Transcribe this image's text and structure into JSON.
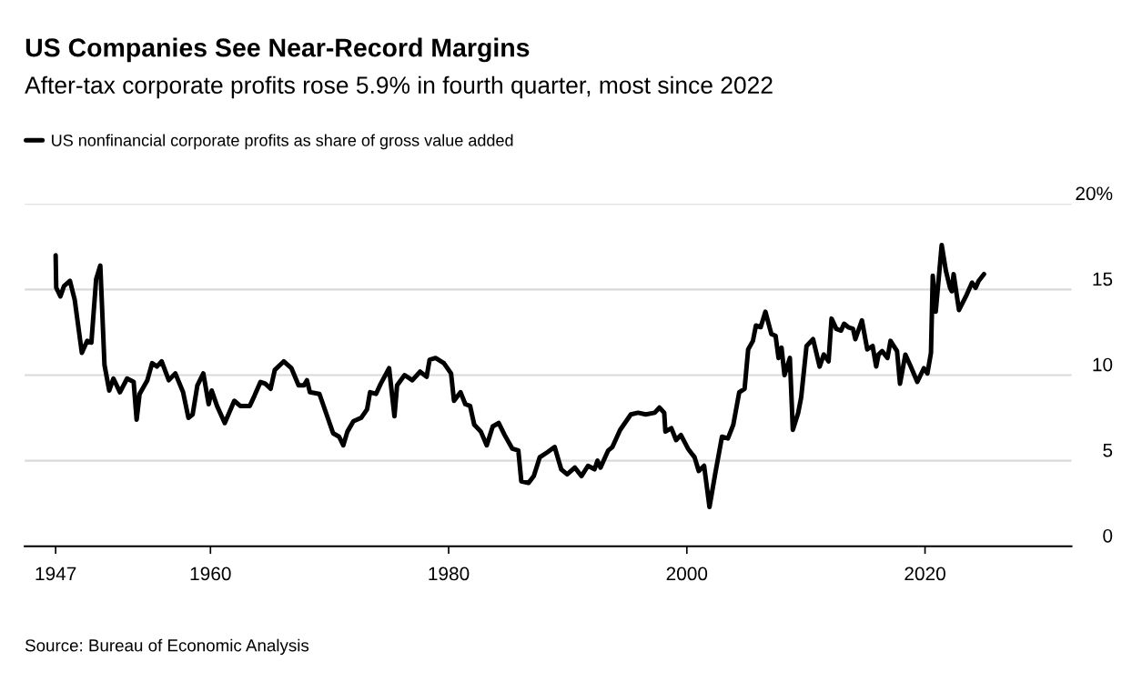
{
  "chart_data": {
    "type": "line",
    "title": "US Companies See Near-Record Margins",
    "subtitle": "After-tax corporate profits rose 5.9% in fourth quarter, most since 2022",
    "annotations": [
      "Source: Bureau of Economic Analysis"
    ],
    "legend": "top left",
    "grid": "y",
    "line_style": "solid",
    "xlim": [
      1944.4,
      2032.3
    ],
    "xticks": [
      1947,
      1960,
      1980,
      2000,
      2020
    ],
    "ylim": [
      0,
      20
    ],
    "yticks": [
      0,
      5,
      10,
      15,
      {
        "value": 20,
        "label": "20%"
      }
    ],
    "series": [
      {
        "name": "US nonfinancial corporate profits as share of gross value added",
        "color": "#000000",
        "x": [
          1947.0,
          1947.05,
          1947.4,
          1947.7,
          1948.2,
          1948.6,
          1949.2,
          1949.65,
          1950.0,
          1950.4,
          1950.75,
          1951.1,
          1951.5,
          1951.85,
          1952.4,
          1953.0,
          1953.55,
          1953.8,
          1954.05,
          1954.7,
          1955.1,
          1955.5,
          1955.9,
          1956.5,
          1957.05,
          1957.7,
          1958.15,
          1958.5,
          1958.9,
          1959.4,
          1959.85,
          1960.1,
          1960.55,
          1961.2,
          1962.0,
          1962.5,
          1963.3,
          1963.7,
          1964.2,
          1964.6,
          1965.05,
          1965.4,
          1966.15,
          1966.8,
          1967.4,
          1967.85,
          1968.1,
          1968.35,
          1969.15,
          1970.3,
          1970.8,
          1971.15,
          1971.5,
          1972.0,
          1972.65,
          1973.15,
          1973.4,
          1973.9,
          1974.3,
          1975.0,
          1975.45,
          1975.67,
          1976.3,
          1976.95,
          1977.6,
          1978.15,
          1978.4,
          1978.9,
          1979.6,
          1980.2,
          1980.45,
          1981.0,
          1981.4,
          1981.8,
          1982.15,
          1982.7,
          1983.2,
          1983.7,
          1984.2,
          1984.7,
          1985.35,
          1985.85,
          1986.1,
          1986.7,
          1987.15,
          1987.65,
          1988.3,
          1988.9,
          1989.45,
          1989.95,
          1990.6,
          1991.15,
          1991.7,
          1992.25,
          1992.5,
          1992.75,
          1993.4,
          1993.75,
          1994.4,
          1995.3,
          1995.9,
          1996.55,
          1997.3,
          1997.7,
          1998.1,
          1998.2,
          1998.7,
          1999.1,
          1999.5,
          2000.1,
          2000.65,
          2001.0,
          2001.45,
          2001.9,
          2002.4,
          2002.95,
          2003.45,
          2003.9,
          2004.4,
          2004.85,
          2005.15,
          2005.55,
          2005.8,
          2006.2,
          2006.6,
          2007.1,
          2007.45,
          2007.7,
          2007.95,
          2008.2,
          2008.65,
          2008.9,
          2009.35,
          2009.6,
          2010.05,
          2010.6,
          2011.15,
          2011.5,
          2011.9,
          2012.15,
          2012.55,
          2012.95,
          2013.2,
          2013.55,
          2013.95,
          2014.15,
          2014.7,
          2015.15,
          2015.6,
          2015.9,
          2016.1,
          2016.4,
          2016.85,
          2017.1,
          2017.65,
          2017.9,
          2018.35,
          2018.8,
          2019.35,
          2019.9,
          2020.2,
          2020.5,
          2020.65,
          2020.9,
          2021.4,
          2021.75,
          2022.1,
          2022.25,
          2022.4,
          2022.85,
          2023.5,
          2023.95,
          2024.25,
          2024.5,
          2024.95
        ],
        "values": [
          17.0,
          15.1,
          14.6,
          15.2,
          15.5,
          14.4,
          11.3,
          12.0,
          11.9,
          15.6,
          16.4,
          10.6,
          9.1,
          9.8,
          9.0,
          9.8,
          9.6,
          7.4,
          8.9,
          9.7,
          10.7,
          10.5,
          10.8,
          9.7,
          10.1,
          9.0,
          7.5,
          7.7,
          9.4,
          10.1,
          8.3,
          9.1,
          8.2,
          7.2,
          8.5,
          8.2,
          8.2,
          8.8,
          9.6,
          9.5,
          9.2,
          10.3,
          10.8,
          10.4,
          9.4,
          9.4,
          9.7,
          9.0,
          8.9,
          6.6,
          6.4,
          5.9,
          6.7,
          7.3,
          7.5,
          8.0,
          9.0,
          8.9,
          9.5,
          10.4,
          7.6,
          9.4,
          10.0,
          9.7,
          10.2,
          9.9,
          10.9,
          11.0,
          10.7,
          10.1,
          8.5,
          9.0,
          8.3,
          8.2,
          7.1,
          6.7,
          5.9,
          7.0,
          7.2,
          6.5,
          5.7,
          5.6,
          3.8,
          3.7,
          4.1,
          5.2,
          5.5,
          5.8,
          4.5,
          4.2,
          4.6,
          4.1,
          4.7,
          4.5,
          5.0,
          4.6,
          5.6,
          5.8,
          6.8,
          7.7,
          7.8,
          7.7,
          7.8,
          8.1,
          7.8,
          6.7,
          6.9,
          6.2,
          6.5,
          5.7,
          5.2,
          4.4,
          4.7,
          2.3,
          4.3,
          6.4,
          6.3,
          7.1,
          9.0,
          9.2,
          11.5,
          12.0,
          12.9,
          12.8,
          13.7,
          12.4,
          12.3,
          11.0,
          11.6,
          10.0,
          11.0,
          6.8,
          7.8,
          8.7,
          11.7,
          12.1,
          10.5,
          11.2,
          10.8,
          13.3,
          12.7,
          12.6,
          13.0,
          12.8,
          12.7,
          12.1,
          13.2,
          11.5,
          11.7,
          10.5,
          11.2,
          11.4,
          11.0,
          12.0,
          11.4,
          9.5,
          11.2,
          10.5,
          9.6,
          10.4,
          10.1,
          11.3,
          15.8,
          13.7,
          17.6,
          16.1,
          15.1,
          14.9,
          15.9,
          13.8,
          14.7,
          15.4,
          15.1,
          15.5,
          15.9
        ]
      }
    ]
  }
}
